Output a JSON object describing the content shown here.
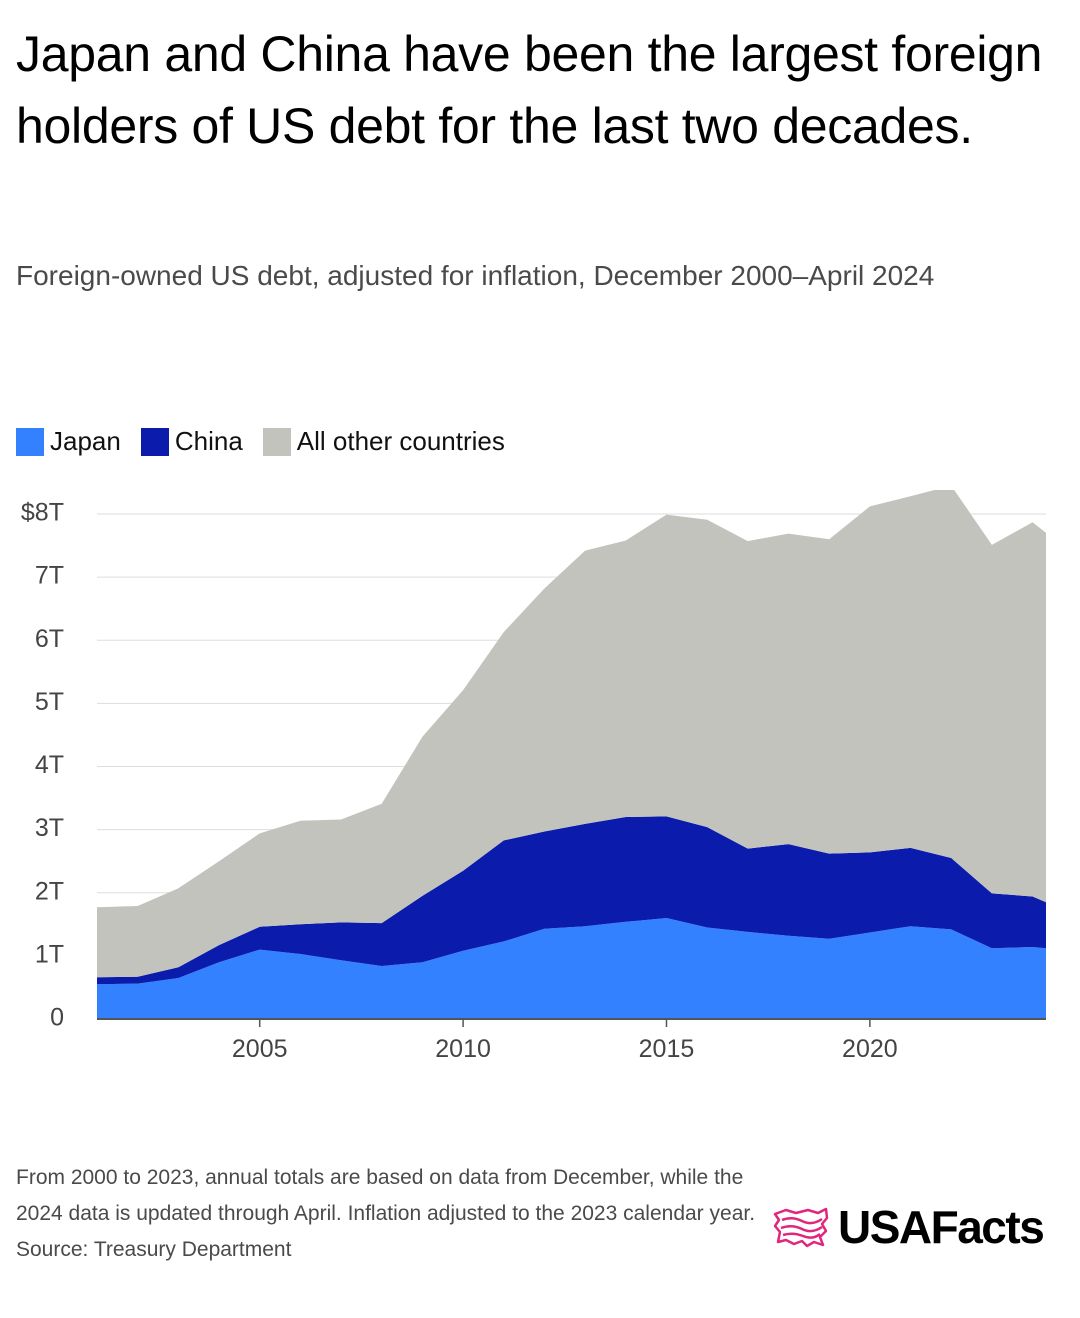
{
  "header": {
    "title": "Japan and China have been the largest foreign holders of US debt for the last two decades.",
    "subtitle": "Foreign-owned US debt, adjusted for inflation, December 2000–April 2024"
  },
  "footer": {
    "note": "From 2000 to 2023, annual totals are based on data from December, while the 2024 data is updated through April. Inflation adjusted to the 2023 calendar year.",
    "source": "Source: Treasury Department"
  },
  "logo": {
    "text": "USAFacts",
    "icon": "usa-map-flag-icon",
    "color": "#e0267d"
  },
  "chart_data": {
    "type": "area",
    "stacked": true,
    "title": "Japan and China have been the largest foreign holders of US debt for the last two decades.",
    "subtitle": "Foreign-owned US debt, adjusted for inflation, December 2000–April 2024",
    "x": [
      2001,
      2002,
      2003,
      2004,
      2005,
      2006,
      2007,
      2008,
      2009,
      2010,
      2011,
      2012,
      2013,
      2014,
      2015,
      2016,
      2017,
      2018,
      2019,
      2020,
      2021,
      2022,
      2023,
      2024,
      2024.33
    ],
    "series": [
      {
        "name": "Japan",
        "color": "#3381ff",
        "values": [
          0.55,
          0.56,
          0.65,
          0.9,
          1.1,
          1.03,
          0.93,
          0.84,
          0.9,
          1.08,
          1.23,
          1.43,
          1.47,
          1.54,
          1.6,
          1.45,
          1.38,
          1.32,
          1.27,
          1.37,
          1.47,
          1.42,
          1.12,
          1.14,
          1.12
        ]
      },
      {
        "name": "China",
        "color": "#0b1cad",
        "values": [
          0.11,
          0.11,
          0.17,
          0.27,
          0.36,
          0.47,
          0.6,
          0.68,
          1.05,
          1.27,
          1.6,
          1.54,
          1.62,
          1.66,
          1.61,
          1.59,
          1.32,
          1.45,
          1.35,
          1.27,
          1.24,
          1.13,
          0.87,
          0.8,
          0.73
        ]
      },
      {
        "name": "All other countries",
        "color": "#c2c3bd",
        "values": [
          1.11,
          1.12,
          1.25,
          1.33,
          1.48,
          1.64,
          1.63,
          1.89,
          2.52,
          2.86,
          3.3,
          3.85,
          4.33,
          4.38,
          4.78,
          4.87,
          4.87,
          4.92,
          4.98,
          5.48,
          5.57,
          5.9,
          5.52,
          5.93,
          5.85
        ]
      }
    ],
    "xticks": [
      2005,
      2010,
      2015,
      2020
    ],
    "xtick_labels": [
      "2005",
      "2010",
      "2015",
      "2020"
    ],
    "yticks": [
      0,
      1,
      2,
      3,
      4,
      5,
      6,
      7,
      8
    ],
    "ytick_labels": [
      "0",
      "1T",
      "2T",
      "3T",
      "4T",
      "5T",
      "6T",
      "7T",
      "$8T"
    ],
    "xlim": [
      2001,
      2024.33
    ],
    "ylim": [
      0,
      8
    ],
    "xlabel": "",
    "ylabel": "",
    "grid": "horizontal",
    "legend": "top-left",
    "axis_color": "#555555",
    "grid_color": "#dddddd"
  }
}
